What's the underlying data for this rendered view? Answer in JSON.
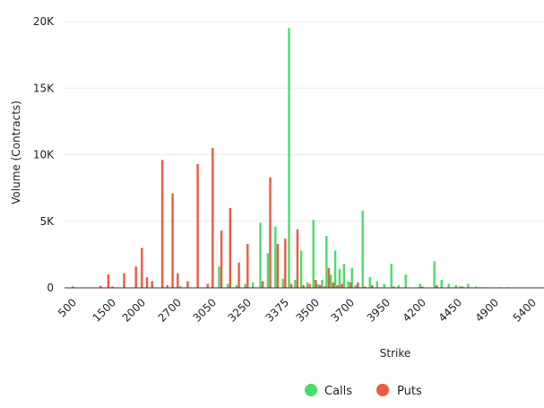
{
  "chart_data": {
    "type": "bar",
    "xlabel": "Strike",
    "ylabel": "Volume (Contracts)",
    "ylim": [
      0,
      20000
    ],
    "yticks": [
      {
        "value": 0,
        "label": "0"
      },
      {
        "value": 5000,
        "label": "5K"
      },
      {
        "value": 10000,
        "label": "10K"
      },
      {
        "value": 15000,
        "label": "15K"
      },
      {
        "value": 20000,
        "label": "20K"
      }
    ],
    "xtick_labels": [
      "500",
      "1500",
      "2000",
      "2700",
      "3050",
      "3250",
      "3375",
      "3500",
      "3700",
      "3950",
      "4200",
      "4450",
      "4900",
      "5400"
    ],
    "grid": true,
    "legend": "bottom",
    "colors": {
      "calls": "#4cdb6b",
      "puts": "#ec5a40"
    },
    "series": [
      {
        "name": "Calls",
        "strikes": [
          2050,
          2450,
          2750,
          3100,
          3150,
          3200,
          3250,
          3275,
          3300,
          3325,
          3350,
          3375,
          3400,
          3425,
          3450,
          3475,
          3500,
          3525,
          3550,
          3575,
          3600,
          3625,
          3650,
          3675,
          3700,
          3725,
          3750,
          3800,
          3850,
          3900,
          3950,
          4000,
          4050,
          4100,
          4200,
          4300,
          4350,
          4400,
          4450,
          4500,
          4600,
          4700,
          4750,
          4800,
          5000,
          5100
        ],
        "values": [
          50,
          100,
          150,
          1600,
          300,
          200,
          300,
          400,
          4900,
          2600,
          4600,
          700,
          19500,
          600,
          2800,
          400,
          5100,
          300,
          600,
          3900,
          1000,
          2800,
          1400,
          1800,
          500,
          1500,
          200,
          5800,
          800,
          500,
          300,
          1800,
          200,
          1000,
          300,
          2000,
          600,
          300,
          200,
          100,
          300,
          100,
          50,
          50,
          50,
          50
        ]
      },
      {
        "name": "Puts",
        "strikes": [
          500,
          1200,
          1400,
          1500,
          1700,
          1900,
          2000,
          2100,
          2200,
          2400,
          2500,
          2600,
          2700,
          2800,
          2900,
          3000,
          3050,
          3100,
          3150,
          3200,
          3250,
          3300,
          3325,
          3350,
          3375,
          3400,
          3425,
          3450,
          3475,
          3500,
          3525,
          3550,
          3575,
          3600,
          3625,
          3650,
          3700,
          3750,
          3800,
          3850,
          4000,
          4200,
          4300,
          4500
        ],
        "values": [
          100,
          150,
          1000,
          100,
          1100,
          1600,
          3000,
          800,
          500,
          9600,
          200,
          7100,
          1100,
          500,
          9300,
          300,
          10500,
          4300,
          6000,
          1900,
          3300,
          500,
          8300,
          3300,
          3700,
          300,
          4400,
          200,
          300,
          600,
          200,
          100,
          1500,
          400,
          200,
          300,
          400,
          400,
          100,
          200,
          100,
          100,
          200,
          100
        ]
      }
    ]
  }
}
